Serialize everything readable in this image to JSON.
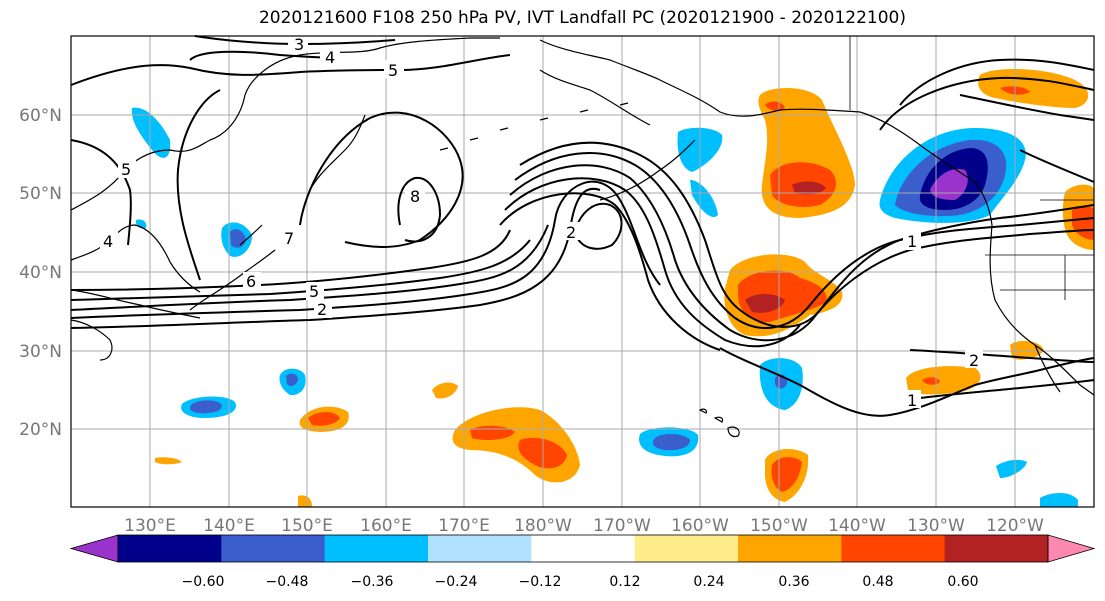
{
  "title": "2020121600 F108 250 hPa PV, IVT Landfall PC (2020121900 - 2020122100)",
  "map": {
    "lat_labels": [
      "60°N",
      "50°N",
      "40°N",
      "30°N",
      "20°N"
    ],
    "lon_labels": [
      "130°E",
      "140°E",
      "150°E",
      "160°E",
      "170°E",
      "180°W",
      "170°W",
      "160°W",
      "150°W",
      "140°W",
      "130°W",
      "120°W"
    ],
    "contour_labels": [
      "3",
      "4",
      "5",
      "8",
      "2",
      "7",
      "6",
      "5",
      "2",
      "1",
      "2",
      "1",
      "4",
      "5"
    ]
  },
  "colorbar": {
    "tick_labels": [
      "−0.60",
      "−0.48",
      "−0.36",
      "−0.24",
      "−0.12",
      "0.12",
      "0.24",
      "0.36",
      "0.48",
      "0.60"
    ],
    "colors": [
      "#9933cc",
      "#00008b",
      "#3a5fcd",
      "#00bfff",
      "#b0e2ff",
      "#ffffff",
      "#ffec8b",
      "#ffa500",
      "#ff4500",
      "#b22222",
      "#ff88b0"
    ]
  }
}
